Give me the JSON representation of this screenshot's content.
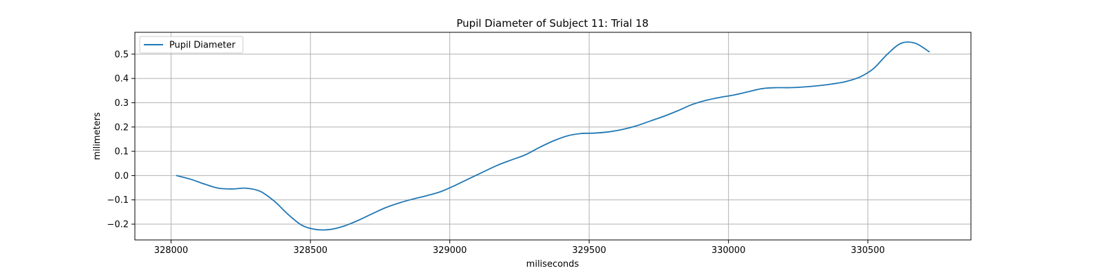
{
  "chart_data": {
    "type": "line",
    "title": "Pupil Diameter of Subject 11: Trial 18",
    "xlabel": "miliseconds",
    "ylabel": "milimeters",
    "xlim": [
      327870,
      330870
    ],
    "ylim": [
      -0.265,
      0.59
    ],
    "xticks": [
      328000,
      328500,
      329000,
      329500,
      330000,
      330500
    ],
    "xtick_labels": [
      "328000",
      "328500",
      "329000",
      "329500",
      "330000",
      "330500"
    ],
    "yticks": [
      -0.2,
      -0.1,
      0.0,
      0.1,
      0.2,
      0.3,
      0.4,
      0.5
    ],
    "ytick_labels": [
      "−0.2",
      "−0.1",
      "0.0",
      "0.1",
      "0.2",
      "0.3",
      "0.4",
      "0.5"
    ],
    "grid": true,
    "legend_position": "upper left",
    "series": [
      {
        "name": "Pupil Diameter",
        "color": "#1f77b4",
        "x": [
          328020,
          328070,
          328120,
          328170,
          328220,
          328270,
          328320,
          328370,
          328420,
          328470,
          328520,
          328570,
          328620,
          328670,
          328720,
          328770,
          328820,
          328870,
          328920,
          328970,
          329020,
          329070,
          329120,
          329170,
          329220,
          329270,
          329320,
          329370,
          329420,
          329470,
          329520,
          329570,
          329620,
          329670,
          329720,
          329770,
          329820,
          329870,
          329920,
          329970,
          330020,
          330070,
          330120,
          330170,
          330220,
          330270,
          330320,
          330370,
          330420,
          330470,
          330520,
          330570,
          330620,
          330670,
          330720
        ],
        "y": [
          0.0,
          -0.015,
          -0.035,
          -0.052,
          -0.055,
          -0.052,
          -0.065,
          -0.105,
          -0.16,
          -0.205,
          -0.222,
          -0.222,
          -0.208,
          -0.185,
          -0.158,
          -0.132,
          -0.112,
          -0.096,
          -0.082,
          -0.065,
          -0.04,
          -0.012,
          0.015,
          0.042,
          0.064,
          0.085,
          0.115,
          0.142,
          0.163,
          0.173,
          0.175,
          0.18,
          0.19,
          0.205,
          0.225,
          0.245,
          0.268,
          0.293,
          0.31,
          0.322,
          0.332,
          0.345,
          0.358,
          0.362,
          0.362,
          0.365,
          0.37,
          0.377,
          0.387,
          0.405,
          0.44,
          0.5,
          0.545,
          0.545,
          0.51
        ]
      }
    ]
  }
}
